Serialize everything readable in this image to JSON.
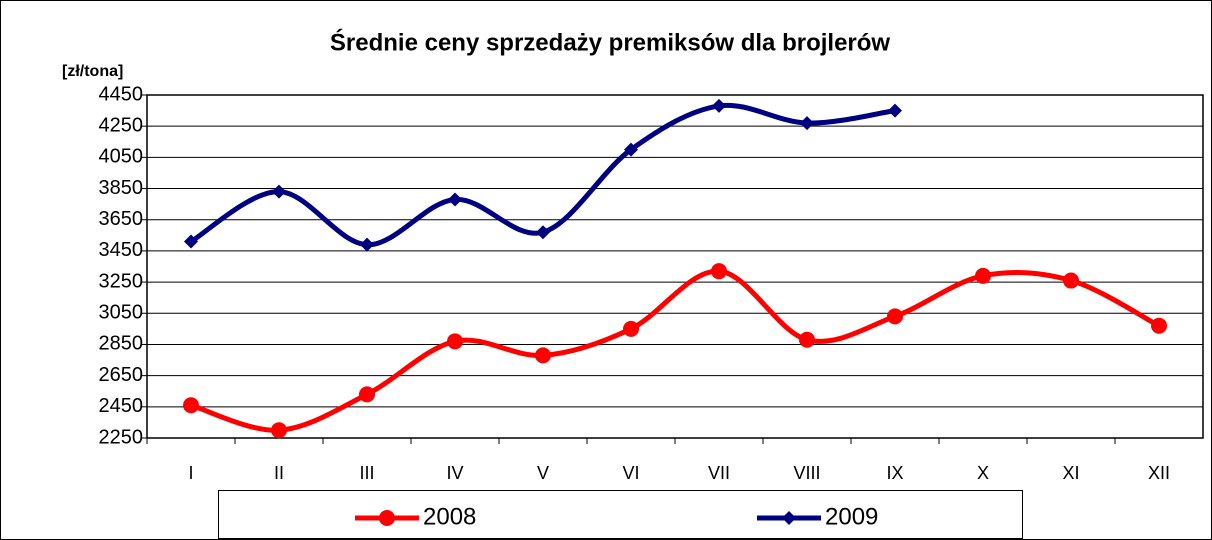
{
  "chart_data": {
    "type": "line",
    "title": "Średnie ceny sprzedaży premiksów dla brojlerów",
    "y_label": "[zł/tona]",
    "categories": [
      "I",
      "II",
      "III",
      "IV",
      "V",
      "VI",
      "VII",
      "VIII",
      "IX",
      "X",
      "XI",
      "XII"
    ],
    "series": [
      {
        "name": "2008",
        "color": "#ff0000",
        "marker": "circle",
        "values": [
          2460,
          2300,
          2530,
          2870,
          2780,
          2950,
          3320,
          2880,
          3030,
          3290,
          3260,
          2970
        ]
      },
      {
        "name": "2009",
        "color": "#000080",
        "marker": "diamond",
        "values": [
          3510,
          3830,
          3490,
          3780,
          3570,
          4100,
          4380,
          4270,
          4350,
          null,
          null,
          null
        ]
      }
    ],
    "ylim": [
      2250,
      4450
    ],
    "yticks": [
      2250,
      2450,
      2650,
      2850,
      3050,
      3250,
      3450,
      3650,
      3850,
      4050,
      4250,
      4450
    ],
    "grid": true,
    "smooth": true,
    "legend": "bottom"
  }
}
